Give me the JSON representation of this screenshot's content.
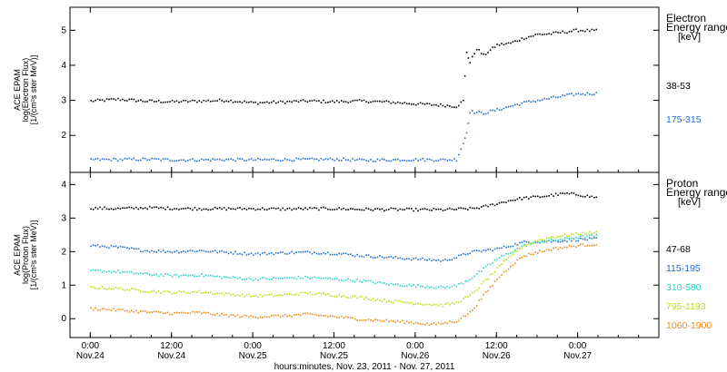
{
  "chart_data": [
    {
      "type": "scatter",
      "panel": "electron",
      "ylabel_lines": [
        "ACE EPAM",
        "log(Electron Flux)",
        "[1/(cm²s ster MeV)]"
      ],
      "ylim": [
        1.1,
        5.5
      ],
      "yticks": [
        2,
        3,
        4,
        5
      ],
      "legend_title_lines": [
        "Electron",
        "Energy range",
        "[keV]"
      ],
      "series": [
        {
          "name": "38-53",
          "color": "#000000",
          "points": [
            [
              0,
              3.0
            ],
            [
              4,
              3.05
            ],
            [
              8,
              3.0
            ],
            [
              12,
              2.98
            ],
            [
              16,
              3.0
            ],
            [
              20,
              3.02
            ],
            [
              24,
              2.95
            ],
            [
              28,
              2.97
            ],
            [
              32,
              3.0
            ],
            [
              36,
              2.98
            ],
            [
              40,
              3.0
            ],
            [
              44,
              2.97
            ],
            [
              48,
              2.92
            ],
            [
              52,
              2.88
            ],
            [
              54,
              2.85
            ],
            [
              55,
              3.0
            ],
            [
              55.5,
              4.4
            ],
            [
              56,
              4.1
            ],
            [
              57,
              4.5
            ],
            [
              58,
              4.3
            ],
            [
              60,
              4.6
            ],
            [
              62,
              4.65
            ],
            [
              64,
              4.8
            ],
            [
              66,
              4.9
            ],
            [
              68,
              4.92
            ],
            [
              70,
              4.97
            ],
            [
              72,
              5.02
            ],
            [
              75,
              5.0
            ]
          ]
        },
        {
          "name": "175-315",
          "color": "#1f6fd0",
          "points": [
            [
              0,
              1.33
            ],
            [
              4,
              1.33
            ],
            [
              8,
              1.34
            ],
            [
              12,
              1.32
            ],
            [
              16,
              1.32
            ],
            [
              20,
              1.33
            ],
            [
              24,
              1.32
            ],
            [
              28,
              1.33
            ],
            [
              32,
              1.33
            ],
            [
              36,
              1.34
            ],
            [
              40,
              1.31
            ],
            [
              44,
              1.32
            ],
            [
              48,
              1.33
            ],
            [
              52,
              1.32
            ],
            [
              54,
              1.33
            ],
            [
              55,
              1.8
            ],
            [
              55.5,
              2.1
            ],
            [
              56,
              2.7
            ],
            [
              58,
              2.65
            ],
            [
              60,
              2.75
            ],
            [
              62,
              2.85
            ],
            [
              64,
              2.95
            ],
            [
              66,
              3.02
            ],
            [
              68,
              3.08
            ],
            [
              70,
              3.15
            ],
            [
              72,
              3.2
            ],
            [
              75,
              3.22
            ]
          ]
        }
      ]
    },
    {
      "type": "scatter",
      "panel": "proton",
      "ylabel_lines": [
        "ACE EPAM",
        "log(Proton Flux)",
        "[1/(cm²s ster MeV)]"
      ],
      "ylim": [
        -0.4,
        4.2
      ],
      "yticks": [
        0,
        1,
        2,
        3,
        4
      ],
      "legend_title_lines": [
        "Proton",
        "Energy range",
        "[keV]"
      ],
      "series": [
        {
          "name": "47-68",
          "color": "#000000",
          "points": [
            [
              0,
              3.32
            ],
            [
              4,
              3.3
            ],
            [
              8,
              3.33
            ],
            [
              12,
              3.31
            ],
            [
              16,
              3.3
            ],
            [
              20,
              3.3
            ],
            [
              24,
              3.3
            ],
            [
              28,
              3.29
            ],
            [
              32,
              3.3
            ],
            [
              36,
              3.3
            ],
            [
              40,
              3.28
            ],
            [
              44,
              3.28
            ],
            [
              48,
              3.27
            ],
            [
              52,
              3.27
            ],
            [
              56,
              3.3
            ],
            [
              58,
              3.35
            ],
            [
              60,
              3.45
            ],
            [
              62,
              3.55
            ],
            [
              64,
              3.62
            ],
            [
              66,
              3.65
            ],
            [
              68,
              3.7
            ],
            [
              70,
              3.75
            ],
            [
              72,
              3.72
            ],
            [
              75,
              3.62
            ]
          ]
        },
        {
          "name": "115-195",
          "color": "#1f6fd0",
          "points": [
            [
              0,
              2.2
            ],
            [
              4,
              2.15
            ],
            [
              8,
              2.05
            ],
            [
              12,
              2.02
            ],
            [
              16,
              2.05
            ],
            [
              20,
              2.0
            ],
            [
              24,
              1.95
            ],
            [
              28,
              1.98
            ],
            [
              32,
              2.0
            ],
            [
              36,
              1.97
            ],
            [
              40,
              1.9
            ],
            [
              44,
              1.85
            ],
            [
              48,
              1.8
            ],
            [
              50,
              1.78
            ],
            [
              52,
              1.75
            ],
            [
              54,
              1.85
            ],
            [
              56,
              2.0
            ],
            [
              58,
              2.05
            ],
            [
              60,
              2.1
            ],
            [
              62,
              2.2
            ],
            [
              64,
              2.3
            ],
            [
              66,
              2.32
            ],
            [
              68,
              2.33
            ],
            [
              70,
              2.35
            ],
            [
              72,
              2.38
            ],
            [
              75,
              2.4
            ]
          ]
        },
        {
          "name": "310-580",
          "color": "#2ad4c4",
          "points": [
            [
              0,
              1.45
            ],
            [
              4,
              1.42
            ],
            [
              8,
              1.35
            ],
            [
              12,
              1.3
            ],
            [
              16,
              1.32
            ],
            [
              20,
              1.25
            ],
            [
              24,
              1.2
            ],
            [
              28,
              1.22
            ],
            [
              32,
              1.25
            ],
            [
              36,
              1.2
            ],
            [
              40,
              1.15
            ],
            [
              44,
              1.05
            ],
            [
              48,
              1.0
            ],
            [
              50,
              0.98
            ],
            [
              52,
              0.95
            ],
            [
              54,
              1.0
            ],
            [
              56,
              1.2
            ],
            [
              58,
              1.5
            ],
            [
              60,
              1.8
            ],
            [
              62,
              2.0
            ],
            [
              64,
              2.2
            ],
            [
              66,
              2.3
            ],
            [
              68,
              2.35
            ],
            [
              70,
              2.4
            ],
            [
              72,
              2.45
            ],
            [
              75,
              2.5
            ]
          ]
        },
        {
          "name": "795-1193",
          "color": "#b8e010",
          "points": [
            [
              0,
              0.95
            ],
            [
              4,
              0.92
            ],
            [
              8,
              0.85
            ],
            [
              12,
              0.8
            ],
            [
              16,
              0.82
            ],
            [
              20,
              0.75
            ],
            [
              24,
              0.7
            ],
            [
              28,
              0.72
            ],
            [
              32,
              0.78
            ],
            [
              36,
              0.72
            ],
            [
              40,
              0.65
            ],
            [
              44,
              0.55
            ],
            [
              48,
              0.48
            ],
            [
              50,
              0.45
            ],
            [
              52,
              0.42
            ],
            [
              54,
              0.5
            ],
            [
              56,
              0.7
            ],
            [
              58,
              1.1
            ],
            [
              60,
              1.5
            ],
            [
              62,
              1.9
            ],
            [
              64,
              2.2
            ],
            [
              66,
              2.35
            ],
            [
              68,
              2.45
            ],
            [
              70,
              2.5
            ],
            [
              72,
              2.55
            ],
            [
              75,
              2.6
            ]
          ]
        },
        {
          "name": "1060-1900",
          "color": "#ef8a17",
          "points": [
            [
              0,
              0.32
            ],
            [
              4,
              0.28
            ],
            [
              8,
              0.22
            ],
            [
              12,
              0.18
            ],
            [
              16,
              0.2
            ],
            [
              20,
              0.12
            ],
            [
              24,
              0.08
            ],
            [
              28,
              0.1
            ],
            [
              32,
              0.15
            ],
            [
              36,
              0.08
            ],
            [
              40,
              0.0
            ],
            [
              44,
              -0.05
            ],
            [
              48,
              -0.1
            ],
            [
              50,
              -0.15
            ],
            [
              52,
              -0.12
            ],
            [
              54,
              -0.05
            ],
            [
              56,
              0.2
            ],
            [
              58,
              0.7
            ],
            [
              60,
              1.2
            ],
            [
              62,
              1.6
            ],
            [
              64,
              1.9
            ],
            [
              66,
              2.0
            ],
            [
              68,
              2.1
            ],
            [
              70,
              2.15
            ],
            [
              72,
              2.2
            ],
            [
              75,
              2.25
            ]
          ]
        }
      ]
    }
  ],
  "x_axis": {
    "range_hours": [
      -3,
      84
    ],
    "ticks": [
      {
        "hours": 0,
        "time": "0:00",
        "date": "Nov.24"
      },
      {
        "hours": 12,
        "time": "12:00",
        "date": "Nov.24"
      },
      {
        "hours": 24,
        "time": "0:00",
        "date": "Nov.25"
      },
      {
        "hours": 36,
        "time": "12:00",
        "date": "Nov.25"
      },
      {
        "hours": 48,
        "time": "0:00",
        "date": "Nov.26"
      },
      {
        "hours": 60,
        "time": "12:00",
        "date": "Nov.26"
      },
      {
        "hours": 72,
        "time": "0:00",
        "date": "Nov.27"
      }
    ],
    "label": "hours:minutes, Nov. 23, 2011 - Nov. 27, 2011"
  }
}
